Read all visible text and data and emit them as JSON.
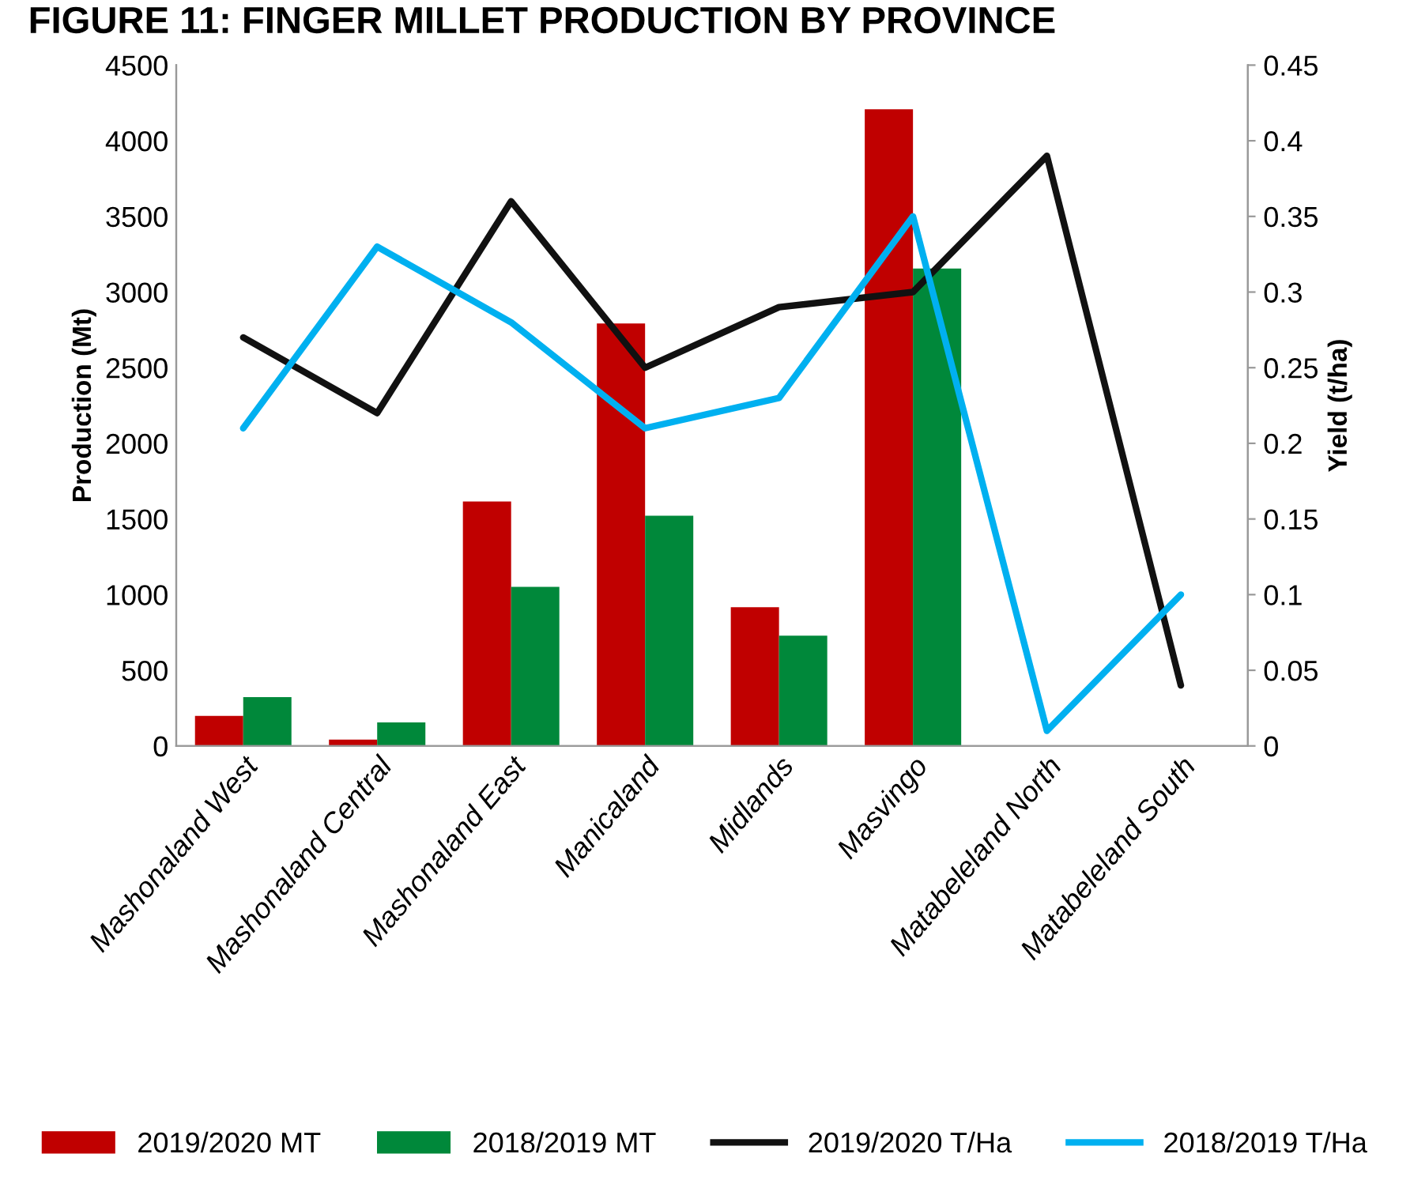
{
  "chart_data": {
    "type": "bar",
    "title": "FIGURE 11: FINGER MILLET PRODUCTION BY PROVINCE",
    "ylabel": "Production (Mt)",
    "y2label": "Yield (t/ha)",
    "categories": [
      "Mashonaland West",
      "Mashonaland Central",
      "Mashonaland East",
      "Manicaland",
      "Midlands",
      "Masvingo",
      "Matabeleland North",
      "Matabeleland South"
    ],
    "series": [
      {
        "name": "2019/2020 MT",
        "color": "#c00000",
        "values": [
          198,
          42,
          1615,
          2792,
          917,
          4208,
          null,
          null
        ]
      },
      {
        "name": "2018/2019 MT",
        "color": "#00883a",
        "values": [
          323,
          156,
          1052,
          1521,
          729,
          3156,
          null,
          null
        ]
      },
      {
        "name": "2019/2020 T/Ha",
        "type": "line",
        "axis": "y2",
        "color": "#111111",
        "values": [
          0.27,
          0.22,
          0.36,
          0.25,
          0.29,
          0.3,
          0.39,
          0.04
        ]
      },
      {
        "name": "2018/2019 T/Ha",
        "type": "line",
        "axis": "y2",
        "color": "#00b0f0",
        "values": [
          0.21,
          0.33,
          0.28,
          0.21,
          0.23,
          0.35,
          0.01,
          0.1
        ]
      }
    ],
    "ylim": [
      0,
      4500
    ],
    "yticks": [
      0,
      500,
      1000,
      1500,
      2000,
      2500,
      3000,
      3500,
      4000,
      4500
    ],
    "y2lim": [
      0,
      0.45
    ],
    "y2ticks": [
      0,
      0.05,
      0.1,
      0.15,
      0.2,
      0.25,
      0.3,
      0.35,
      0.4,
      0.45
    ],
    "grid": false,
    "legend": "bottom"
  }
}
